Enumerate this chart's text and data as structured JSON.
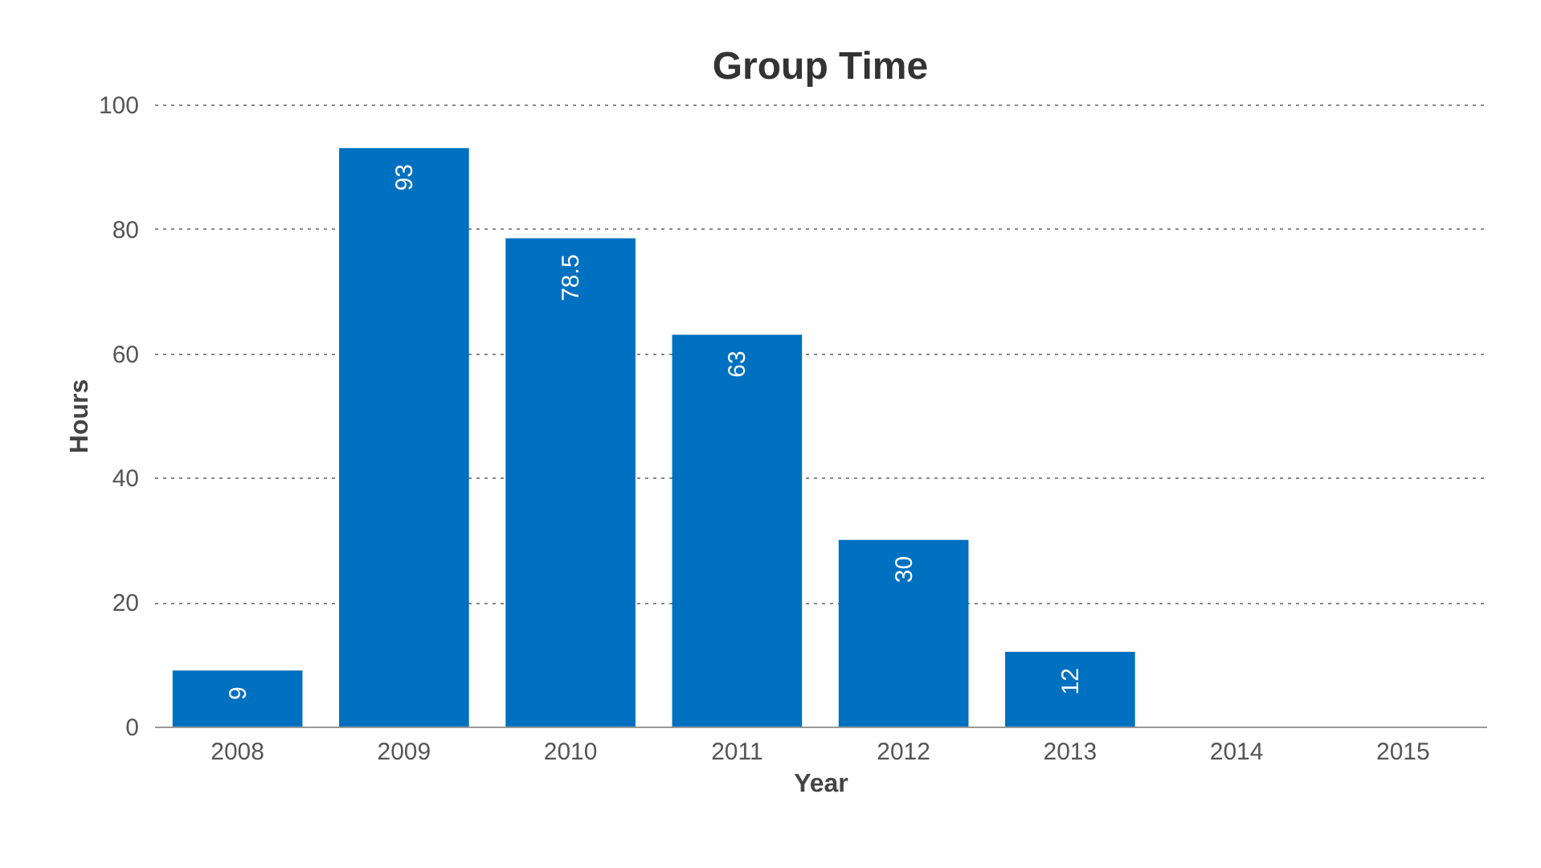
{
  "chart_data": {
    "type": "bar",
    "title": "Group Time",
    "xlabel": "Year",
    "ylabel": "Hours",
    "categories": [
      "2008",
      "2009",
      "2010",
      "2011",
      "2012",
      "2013",
      "2014",
      "2015"
    ],
    "values": [
      9,
      93,
      78.5,
      63,
      30,
      12,
      null,
      null
    ],
    "color": "#0070c0",
    "ylim": [
      0,
      100
    ],
    "yticks": [
      0,
      20,
      40,
      60,
      80,
      100
    ],
    "grid": "y",
    "data_labels": true
  }
}
